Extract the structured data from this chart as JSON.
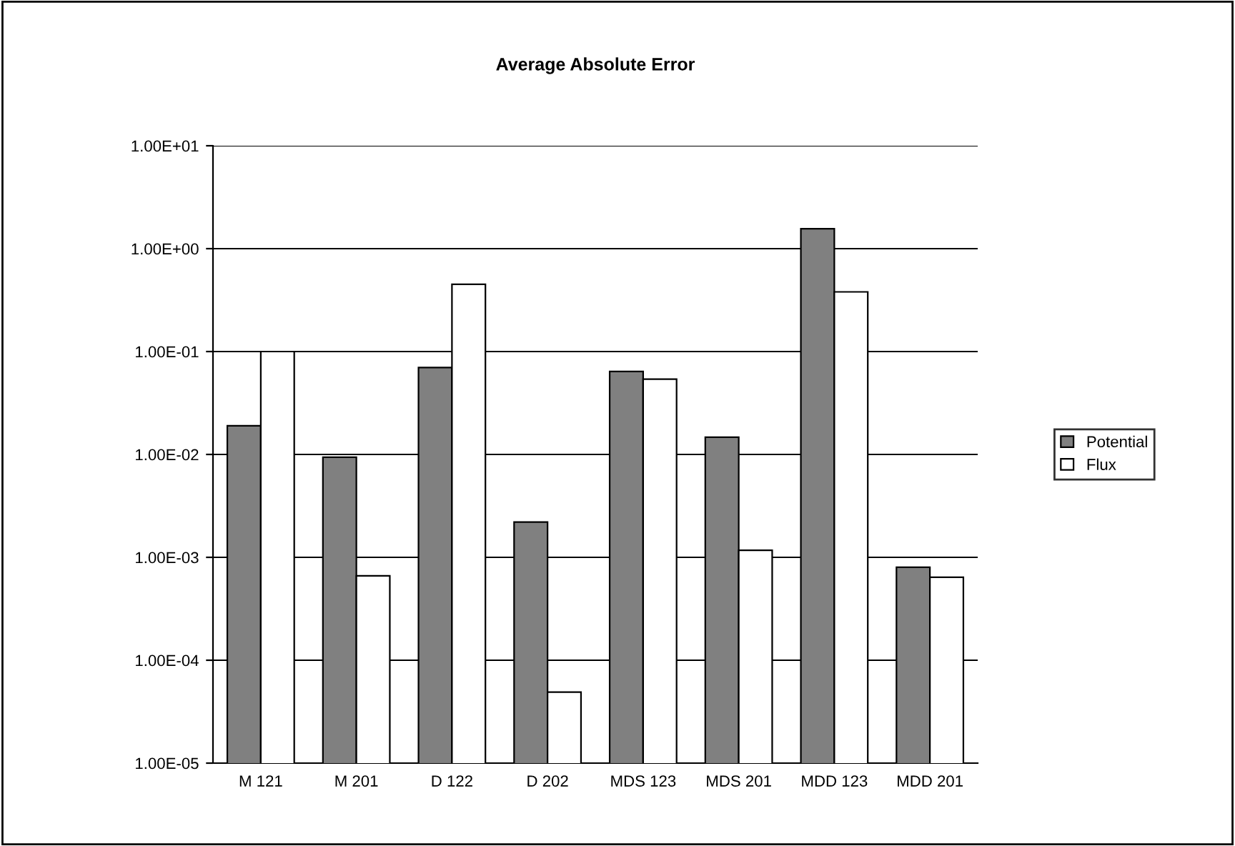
{
  "chart_data": {
    "type": "bar",
    "title": "Average Absolute Error",
    "categories": [
      "M 121",
      "M 201",
      "D 122",
      "D 202",
      "MDS 123",
      "MDS 201",
      "MDD 123",
      "MDD 201"
    ],
    "series": [
      {
        "name": "Potential",
        "color": "#808080",
        "values": [
          0.019,
          0.0094,
          0.07,
          0.0022,
          0.064,
          0.0147,
          1.56,
          0.0008
        ]
      },
      {
        "name": "Flux",
        "color": "#ffffff",
        "values": [
          0.1,
          0.00066,
          0.45,
          4.9e-05,
          0.054,
          0.00117,
          0.38,
          0.00064
        ]
      }
    ],
    "log": "y",
    "ylim": [
      1e-05,
      10
    ],
    "yticks": [
      {
        "value": 1e-05,
        "label": "1.00E-05"
      },
      {
        "value": 0.0001,
        "label": "1.00E-04"
      },
      {
        "value": 0.001,
        "label": "1.00E-03"
      },
      {
        "value": 0.01,
        "label": "1.00E-02"
      },
      {
        "value": 0.1,
        "label": "1.00E-01"
      },
      {
        "value": 1,
        "label": "1.00E+00"
      },
      {
        "value": 10,
        "label": "1.00E+01"
      }
    ],
    "grid": "y",
    "legend": "right"
  }
}
